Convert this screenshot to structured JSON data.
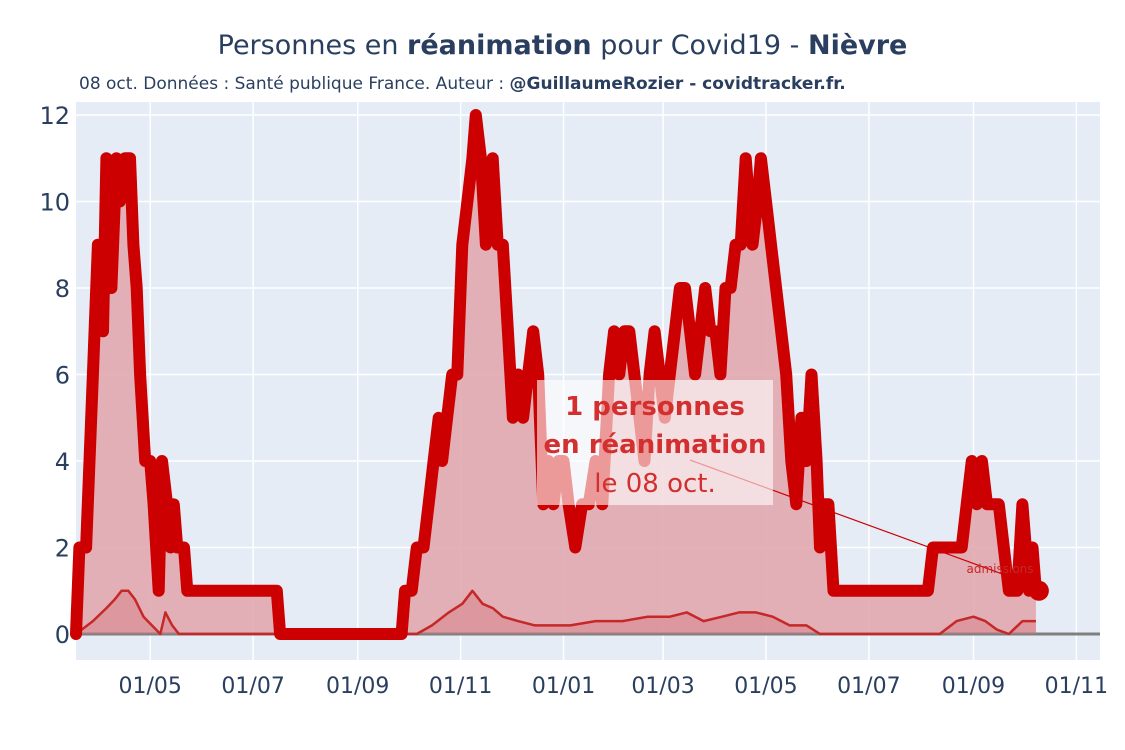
{
  "title": {
    "prefix": "Personnes en ",
    "bold1": "réanimation",
    "middle": " pour Covid19 - ",
    "bold2": "Nièvre"
  },
  "subtitle": {
    "plain": "08 oct. Données : Santé publique France. Auteur : ",
    "bold": "@GuillaumeRozier - covidtracker.fr."
  },
  "annotation": {
    "line1": "1 personnes",
    "line2": "en réanimation",
    "line3": "le 08 oct."
  },
  "marker_label": "admissions",
  "colors": {
    "accent": "#cc0000",
    "fill": "#e0a8ae",
    "plot_bg": "#e5ecf6",
    "text": "#2a3f5f",
    "baseline": "#7f7f7f"
  },
  "chart_data": {
    "type": "area",
    "title": "Personnes en réanimation pour Covid19 - Nièvre",
    "xlabel": "",
    "ylabel": "",
    "ylim": [
      -0.6,
      12.3
    ],
    "y_ticks": [
      0,
      2,
      4,
      6,
      8,
      10,
      12
    ],
    "x_ticks": [
      {
        "date": "2020-05-01",
        "label": "01/05"
      },
      {
        "date": "2020-07-01",
        "label": "01/07"
      },
      {
        "date": "2020-09-01",
        "label": "01/09"
      },
      {
        "date": "2020-11-01",
        "label": "01/11"
      },
      {
        "date": "2021-01-01",
        "label": "01/01"
      },
      {
        "date": "2021-03-01",
        "label": "01/03"
      },
      {
        "date": "2021-05-01",
        "label": "01/05"
      },
      {
        "date": "2021-07-01",
        "label": "01/07"
      },
      {
        "date": "2021-09-01",
        "label": "01/09"
      },
      {
        "date": "2021-11-01",
        "label": "01/11"
      }
    ],
    "xlim": [
      "2020-03-18",
      "2021-11-15"
    ],
    "grid": true,
    "series": [
      {
        "key": "reanimation",
        "points": [
          [
            "2020-03-18",
            0
          ],
          [
            "2020-03-20",
            2
          ],
          [
            "2020-03-24",
            2
          ],
          [
            "2020-03-28",
            6
          ],
          [
            "2020-03-31",
            9
          ],
          [
            "2020-04-03",
            7
          ],
          [
            "2020-04-05",
            11
          ],
          [
            "2020-04-08",
            8
          ],
          [
            "2020-04-11",
            11
          ],
          [
            "2020-04-13",
            10
          ],
          [
            "2020-04-16",
            11
          ],
          [
            "2020-04-19",
            11
          ],
          [
            "2020-04-21",
            9
          ],
          [
            "2020-04-23",
            8
          ],
          [
            "2020-04-25",
            6
          ],
          [
            "2020-04-28",
            4
          ],
          [
            "2020-05-01",
            4
          ],
          [
            "2020-05-03",
            3
          ],
          [
            "2020-05-06",
            1
          ],
          [
            "2020-05-08",
            4
          ],
          [
            "2020-05-11",
            3
          ],
          [
            "2020-05-13",
            2
          ],
          [
            "2020-05-15",
            3
          ],
          [
            "2020-05-17",
            2
          ],
          [
            "2020-05-21",
            2
          ],
          [
            "2020-05-23",
            1
          ],
          [
            "2020-07-15",
            1
          ],
          [
            "2020-07-17",
            0
          ],
          [
            "2020-09-27",
            0
          ],
          [
            "2020-09-29",
            1
          ],
          [
            "2020-10-03",
            1
          ],
          [
            "2020-10-06",
            2
          ],
          [
            "2020-10-10",
            2
          ],
          [
            "2020-10-13",
            3
          ],
          [
            "2020-10-16",
            4
          ],
          [
            "2020-10-19",
            5
          ],
          [
            "2020-10-21",
            4
          ],
          [
            "2020-10-24",
            5
          ],
          [
            "2020-10-27",
            6
          ],
          [
            "2020-10-30",
            6
          ],
          [
            "2020-11-02",
            9
          ],
          [
            "2020-11-05",
            10
          ],
          [
            "2020-11-08",
            11
          ],
          [
            "2020-11-10",
            12
          ],
          [
            "2020-11-13",
            11
          ],
          [
            "2020-11-16",
            9
          ],
          [
            "2020-11-18",
            10
          ],
          [
            "2020-11-20",
            11
          ],
          [
            "2020-11-23",
            9
          ],
          [
            "2020-11-26",
            9
          ],
          [
            "2020-11-29",
            7
          ],
          [
            "2020-12-02",
            5
          ],
          [
            "2020-12-05",
            6
          ],
          [
            "2020-12-08",
            5
          ],
          [
            "2020-12-11",
            6
          ],
          [
            "2020-12-14",
            7
          ],
          [
            "2020-12-17",
            6
          ],
          [
            "2020-12-20",
            3
          ],
          [
            "2020-12-23",
            4
          ],
          [
            "2020-12-26",
            3
          ],
          [
            "2020-12-29",
            4
          ],
          [
            "2021-01-01",
            4
          ],
          [
            "2021-01-04",
            3
          ],
          [
            "2021-01-08",
            2
          ],
          [
            "2021-01-12",
            3
          ],
          [
            "2021-01-16",
            3
          ],
          [
            "2021-01-20",
            4
          ],
          [
            "2021-01-24",
            3
          ],
          [
            "2021-01-28",
            6
          ],
          [
            "2021-01-31",
            7
          ],
          [
            "2021-02-03",
            6
          ],
          [
            "2021-02-06",
            7
          ],
          [
            "2021-02-09",
            7
          ],
          [
            "2021-02-12",
            6
          ],
          [
            "2021-02-15",
            5
          ],
          [
            "2021-02-18",
            4
          ],
          [
            "2021-02-21",
            6
          ],
          [
            "2021-02-24",
            7
          ],
          [
            "2021-02-27",
            6
          ],
          [
            "2021-03-02",
            5
          ],
          [
            "2021-03-05",
            6
          ],
          [
            "2021-03-08",
            7
          ],
          [
            "2021-03-11",
            8
          ],
          [
            "2021-03-14",
            8
          ],
          [
            "2021-03-17",
            7
          ],
          [
            "2021-03-20",
            6
          ],
          [
            "2021-03-23",
            7
          ],
          [
            "2021-03-26",
            8
          ],
          [
            "2021-03-29",
            7
          ],
          [
            "2021-04-01",
            7
          ],
          [
            "2021-04-04",
            6
          ],
          [
            "2021-04-07",
            8
          ],
          [
            "2021-04-10",
            8
          ],
          [
            "2021-04-13",
            9
          ],
          [
            "2021-04-16",
            9
          ],
          [
            "2021-04-19",
            11
          ],
          [
            "2021-04-21",
            10
          ],
          [
            "2021-04-23",
            9
          ],
          [
            "2021-04-26",
            10
          ],
          [
            "2021-04-28",
            11
          ],
          [
            "2021-05-01",
            10
          ],
          [
            "2021-05-04",
            9
          ],
          [
            "2021-05-07",
            8
          ],
          [
            "2021-05-10",
            7
          ],
          [
            "2021-05-13",
            6
          ],
          [
            "2021-05-16",
            4
          ],
          [
            "2021-05-19",
            3
          ],
          [
            "2021-05-22",
            5
          ],
          [
            "2021-05-25",
            4
          ],
          [
            "2021-05-28",
            6
          ],
          [
            "2021-05-31",
            4
          ],
          [
            "2021-06-02",
            2
          ],
          [
            "2021-06-04",
            3
          ],
          [
            "2021-06-07",
            3
          ],
          [
            "2021-06-10",
            1
          ],
          [
            "2021-08-05",
            1
          ],
          [
            "2021-08-08",
            2
          ],
          [
            "2021-08-25",
            2
          ],
          [
            "2021-08-28",
            3
          ],
          [
            "2021-08-31",
            4
          ],
          [
            "2021-09-03",
            3
          ],
          [
            "2021-09-06",
            4
          ],
          [
            "2021-09-09",
            3
          ],
          [
            "2021-09-16",
            3
          ],
          [
            "2021-09-19",
            2
          ],
          [
            "2021-09-22",
            1
          ],
          [
            "2021-09-27",
            1
          ],
          [
            "2021-09-30",
            3
          ],
          [
            "2021-10-02",
            2
          ],
          [
            "2021-10-04",
            1
          ],
          [
            "2021-10-06",
            2
          ],
          [
            "2021-10-08",
            1
          ]
        ]
      },
      {
        "key": "admissions",
        "name": "admissions",
        "points": [
          [
            "2020-03-18",
            0
          ],
          [
            "2020-03-28",
            0.3
          ],
          [
            "2020-04-05",
            0.6
          ],
          [
            "2020-04-10",
            0.8
          ],
          [
            "2020-04-14",
            1.0
          ],
          [
            "2020-04-18",
            1.0
          ],
          [
            "2020-04-22",
            0.8
          ],
          [
            "2020-04-27",
            0.4
          ],
          [
            "2020-05-02",
            0.2
          ],
          [
            "2020-05-07",
            0
          ],
          [
            "2020-05-10",
            0.5
          ],
          [
            "2020-05-14",
            0.2
          ],
          [
            "2020-05-18",
            0
          ],
          [
            "2020-10-06",
            0
          ],
          [
            "2020-10-15",
            0.2
          ],
          [
            "2020-10-25",
            0.5
          ],
          [
            "2020-11-02",
            0.7
          ],
          [
            "2020-11-08",
            1.0
          ],
          [
            "2020-11-14",
            0.7
          ],
          [
            "2020-11-20",
            0.6
          ],
          [
            "2020-11-26",
            0.4
          ],
          [
            "2020-12-05",
            0.3
          ],
          [
            "2020-12-15",
            0.2
          ],
          [
            "2021-01-05",
            0.2
          ],
          [
            "2021-01-20",
            0.3
          ],
          [
            "2021-02-05",
            0.3
          ],
          [
            "2021-02-20",
            0.4
          ],
          [
            "2021-03-05",
            0.4
          ],
          [
            "2021-03-15",
            0.5
          ],
          [
            "2021-03-25",
            0.3
          ],
          [
            "2021-04-05",
            0.4
          ],
          [
            "2021-04-15",
            0.5
          ],
          [
            "2021-04-25",
            0.5
          ],
          [
            "2021-05-05",
            0.4
          ],
          [
            "2021-05-15",
            0.2
          ],
          [
            "2021-05-25",
            0.2
          ],
          [
            "2021-06-02",
            0
          ],
          [
            "2021-08-12",
            0
          ],
          [
            "2021-08-22",
            0.3
          ],
          [
            "2021-09-01",
            0.4
          ],
          [
            "2021-09-08",
            0.3
          ],
          [
            "2021-09-15",
            0.1
          ],
          [
            "2021-09-22",
            0
          ],
          [
            "2021-09-30",
            0.3
          ],
          [
            "2021-10-08",
            0.3
          ]
        ]
      }
    ],
    "latest_point": {
      "date": "2021-10-08",
      "value": 1
    }
  }
}
